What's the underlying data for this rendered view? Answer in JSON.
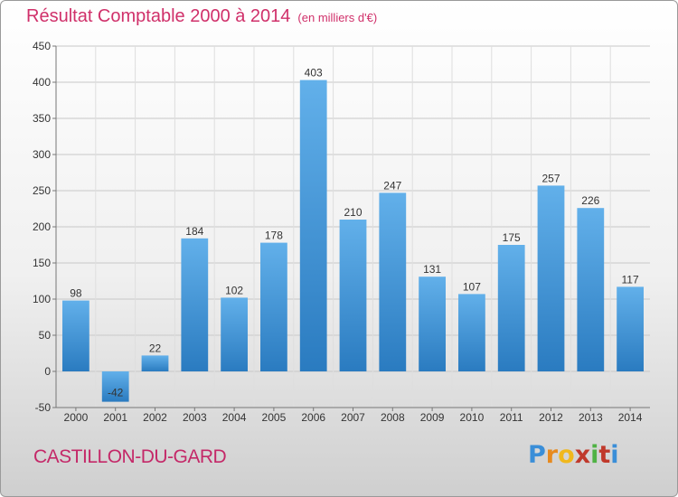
{
  "header": {
    "title": "Résultat Comptable 2000 à 2014",
    "subtitle": "(en milliers d'€)"
  },
  "footer": {
    "commune": "CASTILLON-DU-GARD",
    "logo_letters": [
      "P",
      "r",
      "o",
      "x",
      "i",
      "t",
      "i"
    ]
  },
  "colors": {
    "title": "#d0306a",
    "bar_light": "#62b0ea",
    "bar_dark": "#2a7bc0"
  },
  "chart_data": {
    "type": "bar",
    "title": "Résultat Comptable 2000 à 2014",
    "subtitle": "(en milliers d'€)",
    "xlabel": "",
    "ylabel": "",
    "categories": [
      "2000",
      "2001",
      "2002",
      "2003",
      "2004",
      "2005",
      "2006",
      "2007",
      "2008",
      "2009",
      "2010",
      "2011",
      "2012",
      "2013",
      "2014"
    ],
    "values": [
      98,
      -42,
      22,
      184,
      102,
      178,
      403,
      210,
      247,
      131,
      107,
      175,
      257,
      226,
      117
    ],
    "ylim": [
      -50,
      450
    ],
    "yticks": [
      -50,
      0,
      50,
      100,
      150,
      200,
      250,
      300,
      350,
      400,
      450
    ],
    "grid": true
  }
}
